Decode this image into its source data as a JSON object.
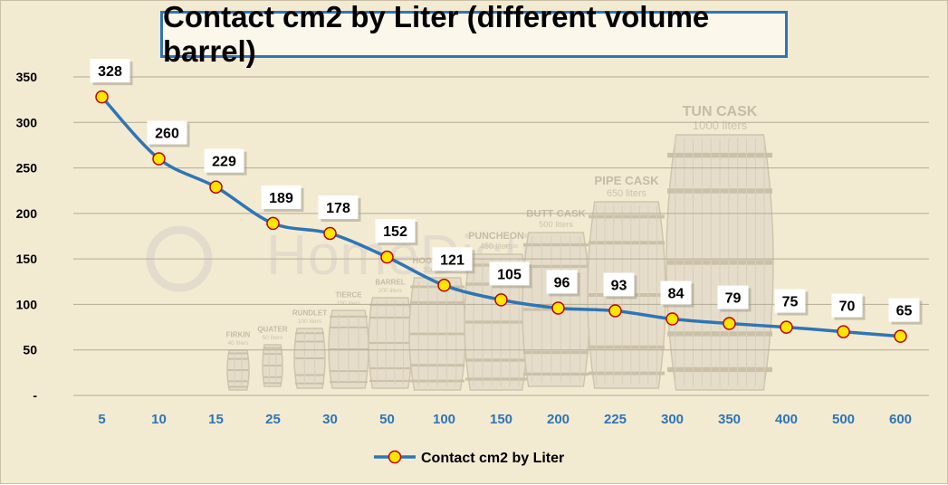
{
  "chart_data": {
    "type": "line",
    "title": "Contact cm2 by Liter (different volume barrel)",
    "categories": [
      "5",
      "10",
      "15",
      "25",
      "30",
      "50",
      "100",
      "150",
      "200",
      "225",
      "300",
      "350",
      "400",
      "500",
      "600"
    ],
    "series": [
      {
        "name": "Contact cm2 by Liter",
        "values": [
          328,
          260,
          229,
          189,
          178,
          152,
          121,
          105,
          96,
          93,
          84,
          79,
          75,
          70,
          65
        ],
        "color": "#2e75b6",
        "marker_fill": "#ffe600",
        "marker_edge": "#c00000"
      }
    ],
    "ylim": [
      0,
      350
    ],
    "yticks": [
      {
        "value": 350,
        "label": "350"
      },
      {
        "value": 300,
        "label": "300"
      },
      {
        "value": 250,
        "label": "250"
      },
      {
        "value": 200,
        "label": "200"
      },
      {
        "value": 150,
        "label": "150"
      },
      {
        "value": 100,
        "label": "100"
      },
      {
        "value": 50,
        "label": "50"
      },
      {
        "value": 0,
        "label": "-"
      }
    ],
    "grid": true,
    "legend_position": "bottom",
    "data_labels": true,
    "xlabel": "",
    "ylabel": ""
  },
  "background": {
    "watermark": "HomeDistiller.ru",
    "barrels": [
      {
        "name": "FIRKIN",
        "volume": "40 liters"
      },
      {
        "name": "QUATER",
        "volume": "50 liters"
      },
      {
        "name": "RUNDLET",
        "volume": "100 liters"
      },
      {
        "name": "TIERCE",
        "volume": "150 liters"
      },
      {
        "name": "BARREL",
        "volume": "200 liters"
      },
      {
        "name": "HOGSHEAD",
        "volume": "300 liters"
      },
      {
        "name": "PUNCHEON",
        "volume": "450 liters"
      },
      {
        "name": "BUTT CASK",
        "volume": "500 liters"
      },
      {
        "name": "PIPE CASK",
        "volume": "650 liters"
      },
      {
        "name": "TUN CASK",
        "volume": "1000 liters"
      }
    ]
  },
  "colors": {
    "background": "#f3ead2",
    "grid": "#b5ab95",
    "axis_text": "#000000",
    "category_text": "#2e75b6",
    "title_border": "#2e75b6"
  }
}
